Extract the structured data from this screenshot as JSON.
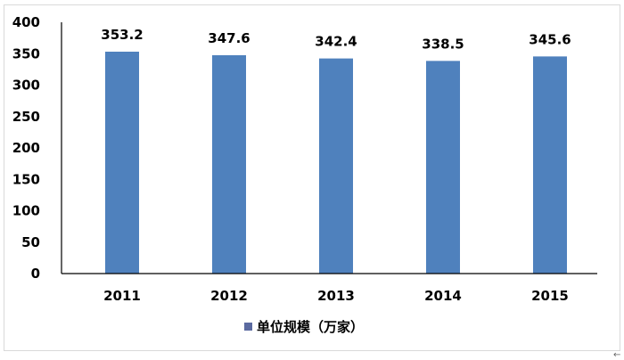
{
  "chart_data": {
    "type": "bar",
    "categories": [
      "2011",
      "2012",
      "2013",
      "2014",
      "2015"
    ],
    "series": [
      {
        "name": "单位规模（万家）",
        "values": [
          353.2,
          347.6,
          342.4,
          338.5,
          345.6
        ],
        "color": "#4f81bd"
      }
    ],
    "data_labels": [
      "353.2",
      "347.6",
      "342.4",
      "338.5",
      "345.6"
    ],
    "ylim": [
      0,
      400
    ],
    "yticks": [
      0,
      50,
      100,
      150,
      200,
      250,
      300,
      350,
      400
    ],
    "grid": false,
    "legend_placement": "bottom",
    "legend_swatch_color": "#5b6aa0"
  }
}
